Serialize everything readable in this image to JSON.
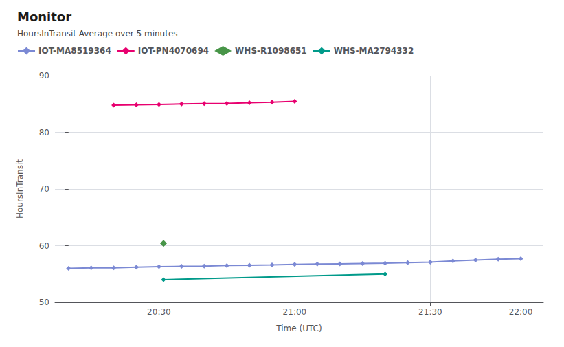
{
  "chart_data": {
    "type": "line",
    "title": "Monitor",
    "subtitle": "HoursInTransit Average over 5 minutes",
    "xlabel": "Time (UTC)",
    "ylabel": "HoursInTransit",
    "xlim": [
      -3,
      105
    ],
    "xticks": [
      {
        "value": 20,
        "label": "20:30"
      },
      {
        "value": 50,
        "label": "21:00"
      },
      {
        "value": 80,
        "label": "21:30"
      },
      {
        "value": 100,
        "label": "22:00"
      }
    ],
    "ylim": [
      50,
      90
    ],
    "yticks": [
      50,
      60,
      70,
      80,
      90
    ],
    "grid": true,
    "legend": "upper left",
    "series": [
      {
        "name": "IOT-MA8519364",
        "color": "#7b89d4",
        "type": "line",
        "marker": "diamond",
        "x": [
          0,
          5,
          10,
          15,
          20,
          25,
          30,
          35,
          40,
          45,
          50,
          55,
          60,
          65,
          70,
          75,
          80,
          85,
          90,
          95,
          100
        ],
        "values": [
          56.0,
          56.1,
          56.1,
          56.2,
          56.3,
          56.35,
          56.4,
          56.5,
          56.55,
          56.6,
          56.7,
          56.75,
          56.8,
          56.85,
          56.9,
          57.0,
          57.1,
          57.3,
          57.45,
          57.6,
          57.7
        ]
      },
      {
        "name": "IOT-PN4070694",
        "color": "#e8006f",
        "type": "line",
        "marker": "diamond",
        "x": [
          10,
          15,
          20,
          25,
          30,
          35,
          40,
          45,
          50
        ],
        "values": [
          84.8,
          84.85,
          84.9,
          85.0,
          85.05,
          85.1,
          85.2,
          85.3,
          85.45
        ]
      },
      {
        "name": "WHS-R1098651",
        "color": "#1a7a1a",
        "type": "scatter",
        "marker": "diamond",
        "x": [
          21
        ],
        "values": [
          60.4
        ]
      },
      {
        "name": "WHS-MA2794332",
        "color": "#009a8a",
        "type": "line",
        "marker": "diamond",
        "x": [
          21,
          70
        ],
        "values": [
          54.0,
          55.0
        ]
      }
    ]
  }
}
